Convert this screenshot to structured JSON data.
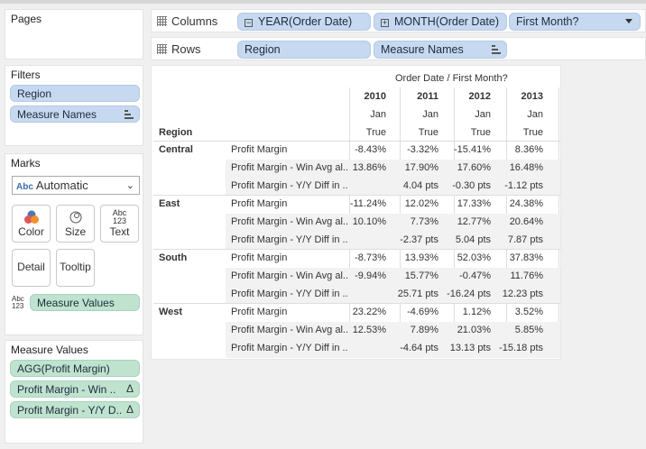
{
  "panels": {
    "pages": {
      "title": "Pages"
    },
    "filters": {
      "title": "Filters",
      "pills": [
        "Region",
        "Measure Names"
      ]
    },
    "marks": {
      "title": "Marks",
      "type_icon": "Abc",
      "type": "Automatic",
      "buttons": [
        {
          "label": "Color",
          "icon": "color-icon"
        },
        {
          "label": "Size",
          "icon": "size-icon"
        },
        {
          "label": "Text",
          "icon": "text-icon",
          "icon_text_top": "Abc",
          "icon_text_bottom": "123"
        },
        {
          "label": "Detail",
          "icon": "detail-icon"
        },
        {
          "label": "Tooltip",
          "icon": "tooltip-icon"
        }
      ],
      "measure_values_pill": "Measure Values",
      "measure_values_icon_top": "Abc",
      "measure_values_icon_bottom": "123"
    },
    "measure_values": {
      "title": "Measure Values",
      "pills": [
        "AGG(Profit Margin)",
        "Profit Margin - Win ..",
        "Profit Margin - Y/Y D.."
      ]
    }
  },
  "shelves": {
    "columns": {
      "label": "Columns",
      "pills": [
        "YEAR(Order Date)",
        "MONTH(Order Date)",
        "First Month?"
      ]
    },
    "rows": {
      "label": "Rows",
      "pills": [
        "Region",
        "Measure Names"
      ]
    }
  },
  "table": {
    "header_title": "Order Date  /  First Month?",
    "row_header": "Region",
    "years": [
      "2010",
      "2011",
      "2012",
      "2013"
    ],
    "months": [
      "Jan",
      "Jan",
      "Jan",
      "Jan"
    ],
    "flags": [
      "True",
      "True",
      "True",
      "True"
    ],
    "measures": [
      "Profit Margin",
      "Profit Margin - Win Avg al..",
      "Profit Margin - Y/Y Diff in .."
    ],
    "regions": [
      {
        "name": "Central",
        "rows": [
          [
            "-8.43%",
            "-3.32%",
            "-15.41%",
            "8.36%"
          ],
          [
            "13.86%",
            "17.90%",
            "17.60%",
            "16.48%"
          ],
          [
            "",
            "4.04 pts",
            "-0.30 pts",
            "-1.12 pts"
          ]
        ]
      },
      {
        "name": "East",
        "rows": [
          [
            "-11.24%",
            "12.02%",
            "17.33%",
            "24.38%"
          ],
          [
            "10.10%",
            "7.73%",
            "12.77%",
            "20.64%"
          ],
          [
            "",
            "-2.37 pts",
            "5.04 pts",
            "7.87 pts"
          ]
        ]
      },
      {
        "name": "South",
        "rows": [
          [
            "-8.73%",
            "13.93%",
            "52.03%",
            "37.83%"
          ],
          [
            "-9.94%",
            "15.77%",
            "-0.47%",
            "11.76%"
          ],
          [
            "",
            "25.71 pts",
            "-16.24 pts",
            "12.23 pts"
          ]
        ]
      },
      {
        "name": "West",
        "rows": [
          [
            "23.22%",
            "-4.69%",
            "1.12%",
            "3.52%"
          ],
          [
            "12.53%",
            "7.89%",
            "21.03%",
            "5.85%"
          ],
          [
            "",
            "-4.64 pts",
            "13.13 pts",
            "-15.18 pts"
          ]
        ]
      }
    ]
  }
}
